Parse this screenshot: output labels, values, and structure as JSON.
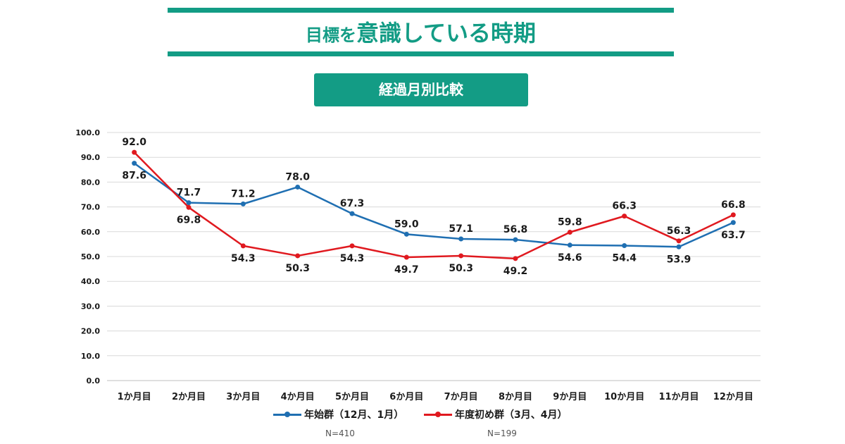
{
  "header": {
    "title_part1": "目標を",
    "title_part2": "意識している時期",
    "subtitle": "経過月別比較"
  },
  "colors": {
    "accent": "#139c85",
    "series_blue": "#1f6fb2",
    "series_red": "#e0191f"
  },
  "notes": {
    "n_blue": "N=410",
    "n_red": "N=199"
  },
  "chart_data": {
    "type": "line",
    "categories": [
      "1か月目",
      "2か月目",
      "3か月目",
      "4か月目",
      "5か月目",
      "6か月目",
      "7か月目",
      "8か月目",
      "9か月目",
      "10か月目",
      "11か月目",
      "12か月目"
    ],
    "ylim": [
      0,
      100
    ],
    "yticks": [
      "0.0",
      "10.0",
      "20.0",
      "30.0",
      "40.0",
      "50.0",
      "60.0",
      "70.0",
      "80.0",
      "90.0",
      "100.0"
    ],
    "grid": true,
    "legend_position": "bottom",
    "series": [
      {
        "name": "年始群（12月、1月）",
        "color": "#1f6fb2",
        "values": [
          87.6,
          71.7,
          71.2,
          78.0,
          67.3,
          59.0,
          57.1,
          56.8,
          54.6,
          54.4,
          53.9,
          63.7
        ],
        "labels": [
          "87.6",
          "71.7",
          "71.2",
          "78.0",
          "67.3",
          "59.0",
          "57.1",
          "56.8",
          "54.6",
          "54.4",
          "53.9",
          "63.7"
        ],
        "label_pos": [
          "below",
          "above",
          "above",
          "above",
          "above",
          "above",
          "above",
          "above",
          "below",
          "below",
          "below",
          "below"
        ]
      },
      {
        "name": "年度初め群（3月、4月）",
        "color": "#e0191f",
        "values": [
          92.0,
          69.8,
          54.3,
          50.3,
          54.3,
          49.7,
          50.3,
          49.2,
          59.8,
          66.3,
          56.3,
          66.8
        ],
        "labels": [
          "92.0",
          "69.8",
          "54.3",
          "50.3",
          "54.3",
          "49.7",
          "50.3",
          "49.2",
          "59.8",
          "66.3",
          "56.3",
          "66.8"
        ],
        "label_pos": [
          "above",
          "below",
          "below",
          "below",
          "below",
          "below",
          "below",
          "below",
          "above",
          "above",
          "above",
          "above"
        ]
      }
    ]
  }
}
